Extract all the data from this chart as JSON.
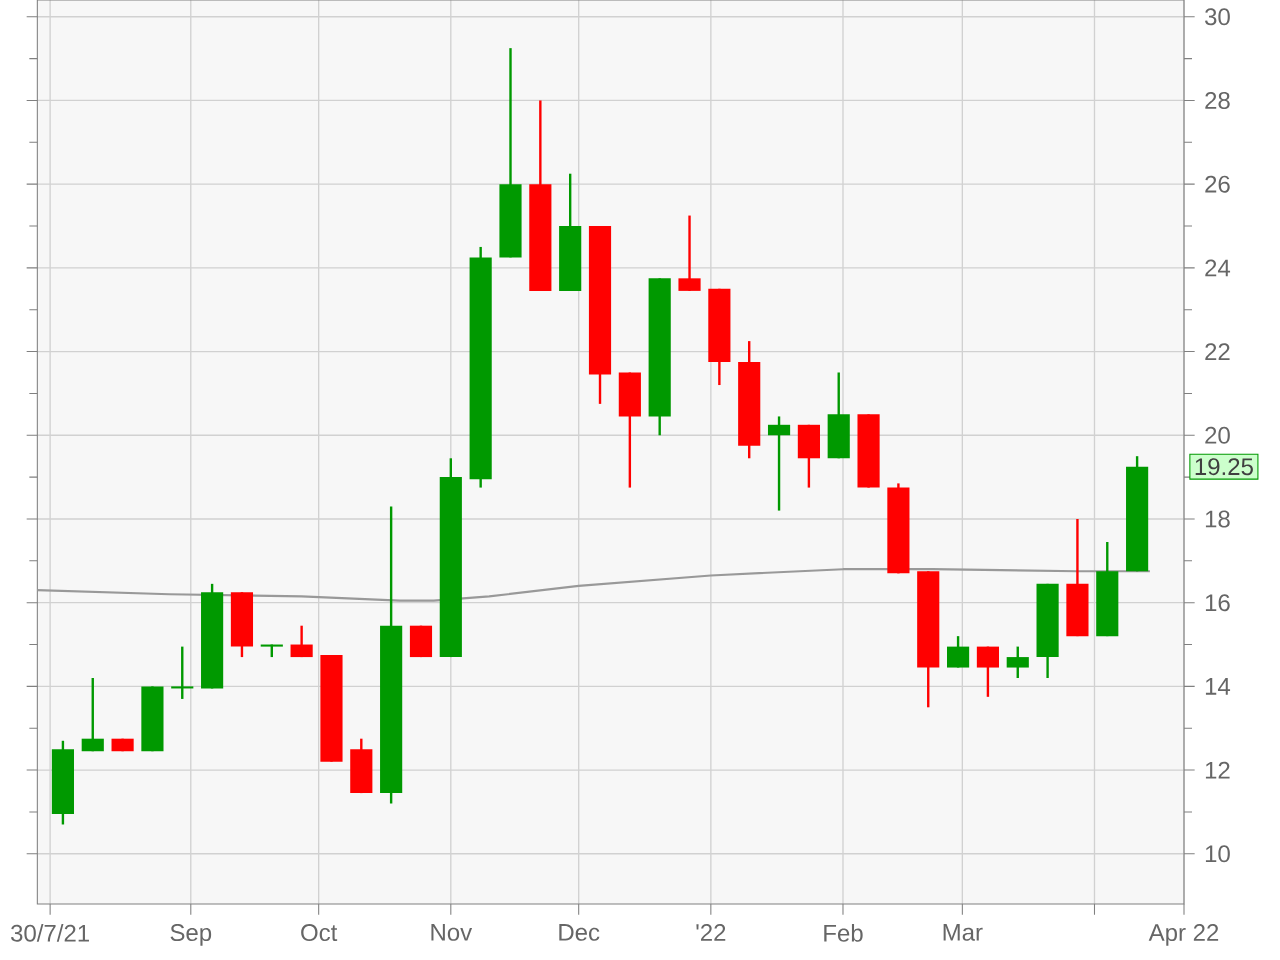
{
  "chart_data": {
    "type": "candlestick",
    "x": [
      "2021-08-02",
      "2021-08-09",
      "2021-08-16",
      "2021-08-23",
      "2021-08-30",
      "2021-09-06",
      "2021-09-13",
      "2021-09-20",
      "2021-09-27",
      "2021-10-04",
      "2021-10-11",
      "2021-10-18",
      "2021-10-25",
      "2021-11-01",
      "2021-11-08",
      "2021-11-15",
      "2021-11-22",
      "2021-11-29",
      "2021-12-06",
      "2021-12-13",
      "2021-12-20",
      "2021-12-27",
      "2022-01-03",
      "2022-01-10",
      "2022-01-17",
      "2022-01-24",
      "2022-01-31",
      "2022-02-07",
      "2022-02-14",
      "2022-02-21",
      "2022-02-28",
      "2022-03-07",
      "2022-03-14",
      "2022-03-21",
      "2022-03-28",
      "2022-04-04",
      "2022-04-11"
    ],
    "ohlc": [
      [
        10.95,
        12.7,
        10.7,
        12.5
      ],
      [
        12.45,
        14.2,
        12.45,
        12.75
      ],
      [
        12.75,
        12.75,
        12.45,
        12.45
      ],
      [
        12.45,
        14.0,
        12.45,
        14.0
      ],
      [
        13.95,
        14.95,
        13.7,
        14.0
      ],
      [
        13.95,
        16.45,
        13.95,
        16.25
      ],
      [
        16.25,
        16.25,
        14.7,
        14.95
      ],
      [
        14.95,
        15.0,
        14.7,
        15.0
      ],
      [
        15.0,
        15.45,
        14.7,
        14.7
      ],
      [
        14.75,
        14.75,
        12.2,
        12.2
      ],
      [
        12.5,
        12.75,
        11.45,
        11.45
      ],
      [
        11.45,
        18.3,
        11.2,
        15.45
      ],
      [
        15.45,
        15.45,
        14.7,
        14.7
      ],
      [
        14.7,
        19.45,
        14.7,
        19.0
      ],
      [
        18.95,
        24.5,
        18.75,
        24.25
      ],
      [
        24.25,
        29.25,
        24.25,
        26.0
      ],
      [
        26.0,
        28.0,
        23.45,
        23.45
      ],
      [
        23.45,
        26.25,
        23.45,
        25.0
      ],
      [
        25.0,
        25.0,
        20.75,
        21.45
      ],
      [
        21.5,
        21.5,
        18.75,
        20.45
      ],
      [
        20.45,
        23.75,
        20.0,
        23.75
      ],
      [
        23.75,
        25.25,
        23.45,
        23.45
      ],
      [
        23.5,
        23.5,
        21.2,
        21.75
      ],
      [
        21.75,
        22.25,
        19.45,
        19.75
      ],
      [
        20.0,
        20.45,
        18.2,
        20.25
      ],
      [
        20.25,
        20.25,
        18.75,
        19.45
      ],
      [
        19.45,
        21.5,
        19.45,
        20.5
      ],
      [
        20.5,
        20.5,
        18.75,
        18.75
      ],
      [
        18.75,
        18.85,
        16.7,
        16.7
      ],
      [
        16.75,
        16.75,
        13.5,
        14.45
      ],
      [
        14.45,
        15.2,
        14.45,
        14.95
      ],
      [
        14.95,
        14.95,
        13.75,
        14.45
      ],
      [
        14.45,
        14.95,
        14.2,
        14.7
      ],
      [
        14.7,
        16.45,
        14.2,
        16.45
      ],
      [
        16.45,
        18.0,
        15.2,
        15.2
      ],
      [
        15.2,
        17.45,
        15.2,
        16.75
      ],
      [
        16.75,
        19.5,
        16.75,
        19.25
      ]
    ],
    "colors": [
      "#009900",
      "#009900",
      "#ff0000",
      "#009900",
      "#009900",
      "#009900",
      "#ff0000",
      "#009900",
      "#ff0000",
      "#ff0000",
      "#ff0000",
      "#009900",
      "#ff0000",
      "#009900",
      "#009900",
      "#009900",
      "#ff0000",
      "#009900",
      "#ff0000",
      "#ff0000",
      "#009900",
      "#ff0000",
      "#ff0000",
      "#ff0000",
      "#009900",
      "#ff0000",
      "#009900",
      "#ff0000",
      "#ff0000",
      "#ff0000",
      "#009900",
      "#ff0000",
      "#009900",
      "#009900",
      "#ff0000",
      "#009900",
      "#009900"
    ],
    "series": [
      {
        "type": "line",
        "color": "#999999",
        "x": [
          "2021-07-27",
          "2021-08-27",
          "2021-09-27",
          "2021-10-20",
          "2021-10-28",
          "2021-11-10",
          "2021-12-01",
          "2022-01-01",
          "2022-02-01",
          "2022-02-22",
          "2022-03-28",
          "2022-04-14"
        ],
        "values": [
          16.3,
          16.2,
          16.15,
          16.05,
          16.05,
          16.15,
          16.4,
          16.65,
          16.8,
          16.8,
          16.75,
          16.75
        ]
      }
    ],
    "xlim": [
      "2021-07-27",
      "2022-04-22"
    ],
    "xticks": [
      {
        "value": "2021-07-30",
        "label": "30/7/21"
      },
      {
        "value": "2021-09-01",
        "label": "Sep"
      },
      {
        "value": "2021-10-01",
        "label": "Oct"
      },
      {
        "value": "2021-11-01",
        "label": "Nov"
      },
      {
        "value": "2021-12-01",
        "label": "Dec"
      },
      {
        "value": "2022-01-01",
        "label": "'22"
      },
      {
        "value": "2022-02-01",
        "label": "Feb"
      },
      {
        "value": "2022-03-01",
        "label": "Mar"
      },
      {
        "value": "2022-04-01",
        "label": null
      },
      {
        "value": "2022-04-22",
        "label": "Apr 22"
      }
    ],
    "ylim": [
      8.8,
      30.4
    ],
    "yticks": [
      10,
      {
        "value": 11,
        "label": null
      },
      12,
      {
        "value": 13,
        "label": null
      },
      14,
      {
        "value": 15,
        "label": null
      },
      16,
      {
        "value": 17,
        "label": null
      },
      18,
      {
        "value": 19,
        "label": null
      },
      20,
      {
        "value": 21,
        "label": null
      },
      22,
      {
        "value": 23,
        "label": null
      },
      24,
      {
        "value": 25,
        "label": null
      },
      26,
      {
        "value": 27,
        "label": null
      },
      28,
      {
        "value": 29,
        "label": null
      },
      30
    ],
    "annotations": [
      "19.25"
    ],
    "grid": true
  }
}
